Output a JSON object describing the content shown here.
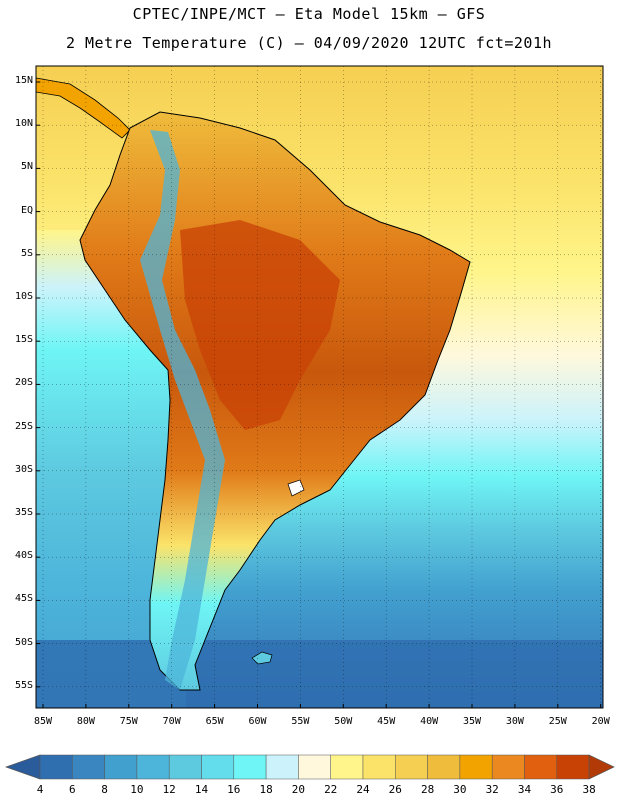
{
  "title_line1": "CPTEC/INPE/MCT –  Eta Model 15km – GFS",
  "title_line2": "2 Metre Temperature (C) – 04/09/2020 12UTC fct=201h",
  "lat_labels": [
    "15N",
    "10N",
    "5N",
    "EQ",
    "5S",
    "10S",
    "15S",
    "20S",
    "25S",
    "30S",
    "35S",
    "40S",
    "45S",
    "50S",
    "55S"
  ],
  "lon_labels": [
    "85W",
    "80W",
    "75W",
    "70W",
    "65W",
    "60W",
    "55W",
    "50W",
    "45W",
    "40W",
    "35W",
    "30W",
    "25W",
    "20W"
  ],
  "colorbar": {
    "labels": [
      "4",
      "6",
      "8",
      "10",
      "12",
      "14",
      "16",
      "18",
      "20",
      "22",
      "24",
      "26",
      "28",
      "30",
      "32",
      "34",
      "36",
      "38"
    ],
    "colors": [
      "#2f6fb0",
      "#3a86c0",
      "#42a0cf",
      "#4db4da",
      "#5ecae0",
      "#63dcec",
      "#6ff5f5",
      "#ccf3fb",
      "#fff8dc",
      "#fff58a",
      "#fbe36a",
      "#f5cf52",
      "#efbc3c",
      "#f2a300",
      "#ec8820",
      "#e06010",
      "#c84206"
    ],
    "low_color": "#2a5c9c",
    "high_color": "#b23a06"
  }
}
